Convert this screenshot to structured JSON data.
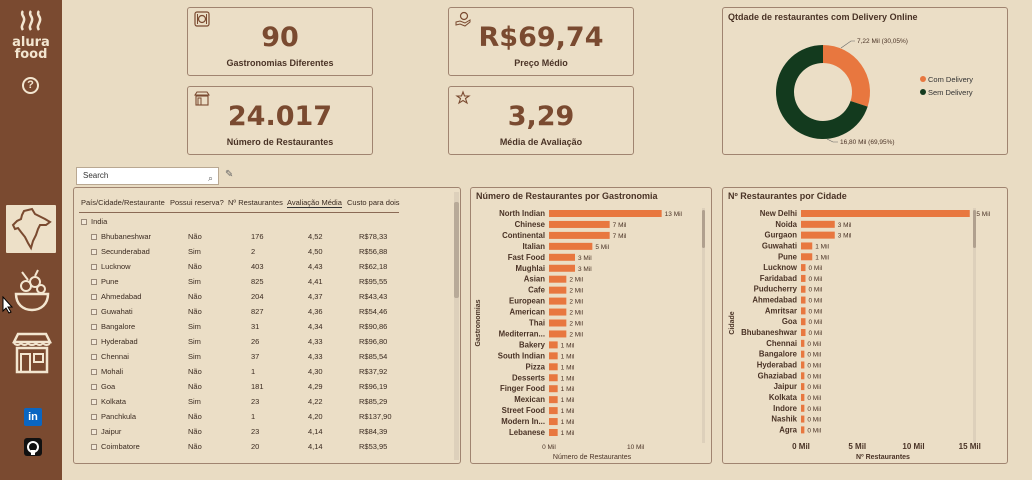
{
  "sidebar": {
    "brand": "alura",
    "brand2": "food",
    "help_icon": "?",
    "items": [
      {
        "name": "india-map-icon",
        "active": true
      },
      {
        "name": "food-bowl-icon",
        "active": false
      },
      {
        "name": "restaurant-storefront-icon",
        "active": false
      }
    ],
    "social": [
      "linkedin-icon",
      "github-icon"
    ],
    "linkedin_text": "in"
  },
  "kpis": {
    "gastronomias": {
      "value": "90",
      "label": "Gastronomias Diferentes"
    },
    "preco": {
      "value": "R$69,74",
      "label": "Preço Médio"
    },
    "restaurantes": {
      "value": "24.017",
      "label": "Número de Restaurantes"
    },
    "avaliacao": {
      "value": "3,29",
      "label": "Média de Avaliação"
    }
  },
  "donut": {
    "title": "Qtdade de restaurantes com Delivery Online",
    "label_com": "7,22 Mil (30,05%)",
    "label_sem": "16,80 Mil (69,95%)",
    "colors": {
      "com": "#e8773f",
      "sem": "#133a1e"
    }
  },
  "search": {
    "placeholder": "Search",
    "icon": "search-icon"
  },
  "table": {
    "headers": [
      "País/Cidade/Restaurante",
      "Possui reserva?",
      "Nº Restaurantes",
      "Avaliação Média",
      "Custo para dois"
    ],
    "group": "India",
    "rows": [
      [
        "Bhubaneshwar",
        "Não",
        "176",
        "4,52",
        "R$78,33"
      ],
      [
        "Secunderabad",
        "Sim",
        "2",
        "4,50",
        "R$56,88"
      ],
      [
        "Lucknow",
        "Não",
        "403",
        "4,43",
        "R$62,18"
      ],
      [
        "Pune",
        "Sim",
        "825",
        "4,41",
        "R$95,55"
      ],
      [
        "Ahmedabad",
        "Não",
        "204",
        "4,37",
        "R$43,43"
      ],
      [
        "Guwahati",
        "Não",
        "827",
        "4,36",
        "R$54,46"
      ],
      [
        "Bangalore",
        "Sim",
        "31",
        "4,34",
        "R$90,86"
      ],
      [
        "Hyderabad",
        "Sim",
        "26",
        "4,33",
        "R$96,80"
      ],
      [
        "Chennai",
        "Sim",
        "37",
        "4,33",
        "R$85,54"
      ],
      [
        "Mohali",
        "Não",
        "1",
        "4,30",
        "R$37,92"
      ],
      [
        "Goa",
        "Não",
        "181",
        "4,29",
        "R$96,19"
      ],
      [
        "Kolkata",
        "Sim",
        "23",
        "4,22",
        "R$85,29"
      ],
      [
        "Panchkula",
        "Não",
        "1",
        "4,20",
        "R$137,90"
      ],
      [
        "Jaipur",
        "Não",
        "23",
        "4,14",
        "R$84,39"
      ],
      [
        "Coimbatore",
        "Não",
        "20",
        "4,14",
        "R$53,95"
      ]
    ]
  },
  "chart_data": [
    {
      "type": "pie",
      "title": "Qtdade de restaurantes com Delivery Online",
      "categories": [
        "Com Delivery",
        "Sem Delivery"
      ],
      "values": [
        7.22,
        16.8
      ],
      "labels": [
        "7,22 Mil (30,05%)",
        "16,80 Mil (69,95%)"
      ],
      "legend": "right",
      "colors": [
        "#e8773f",
        "#133a1e"
      ]
    },
    {
      "type": "bar",
      "orientation": "horizontal",
      "title": "Número de Restaurantes por Gastronomia",
      "ylabel": "Gastronomias",
      "xlabel": "Número de Restaurantes",
      "xticks": [
        "0 Mil",
        "10 Mil"
      ],
      "xlim": [
        0,
        15
      ],
      "categories": [
        "North Indian",
        "Chinese",
        "Continental",
        "Italian",
        "Fast Food",
        "Mughlai",
        "Asian",
        "Cafe",
        "European",
        "American",
        "Thai",
        "Mediterran...",
        "Bakery",
        "South Indian",
        "Pizza",
        "Desserts",
        "Finger Food",
        "Mexican",
        "Street Food",
        "Modern In...",
        "Lebanese"
      ],
      "values": [
        13,
        7,
        7,
        5,
        3,
        3,
        2,
        2,
        2,
        2,
        2,
        2,
        1,
        1,
        1,
        1,
        1,
        1,
        1,
        1,
        1
      ],
      "labels": [
        "13 Mil",
        "7 Mil",
        "7 Mil",
        "5 Mil",
        "3 Mil",
        "3 Mil",
        "2 Mil",
        "2 Mil",
        "2 Mil",
        "2 Mil",
        "2 Mil",
        "2 Mil",
        "1 Mil",
        "1 Mil",
        "1 Mil",
        "1 Mil",
        "1 Mil",
        "1 Mil",
        "1 Mil",
        "1 Mil",
        "1 Mil"
      ],
      "color": "#e8773f"
    },
    {
      "type": "bar",
      "orientation": "horizontal",
      "title": "Nº Restaurantes por Cidade",
      "ylabel": "Cidade",
      "xlabel": "Nº Restaurantes",
      "xticks": [
        "0 Mil",
        "5 Mil",
        "10 Mil",
        "15 Mil"
      ],
      "xlim": [
        0,
        16
      ],
      "categories": [
        "New Delhi",
        "Noida",
        "Gurgaon",
        "Guwahati",
        "Pune",
        "Lucknow",
        "Faridabad",
        "Puducherry",
        "Ahmedabad",
        "Amritsar",
        "Goa",
        "Bhubaneshwar",
        "Chennai",
        "Bangalore",
        "Hyderabad",
        "Ghaziabad",
        "Jaipur",
        "Kolkata",
        "Indore",
        "Nashik",
        "Agra"
      ],
      "values": [
        15,
        3,
        3,
        1,
        1,
        0.4,
        0.4,
        0.4,
        0.4,
        0.4,
        0.4,
        0.4,
        0.3,
        0.3,
        0.3,
        0.3,
        0.3,
        0.3,
        0.3,
        0.3,
        0.3
      ],
      "labels": [
        "15 Mil",
        "3 Mil",
        "3 Mil",
        "1 Mil",
        "1 Mil",
        "0 Mil",
        "0 Mil",
        "0 Mil",
        "0 Mil",
        "0 Mil",
        "0 Mil",
        "0 Mil",
        "0 Mil",
        "0 Mil",
        "0 Mil",
        "0 Mil",
        "0 Mil",
        "0 Mil",
        "0 Mil",
        "0 Mil",
        "0 Mil"
      ],
      "color": "#e8773f"
    }
  ]
}
